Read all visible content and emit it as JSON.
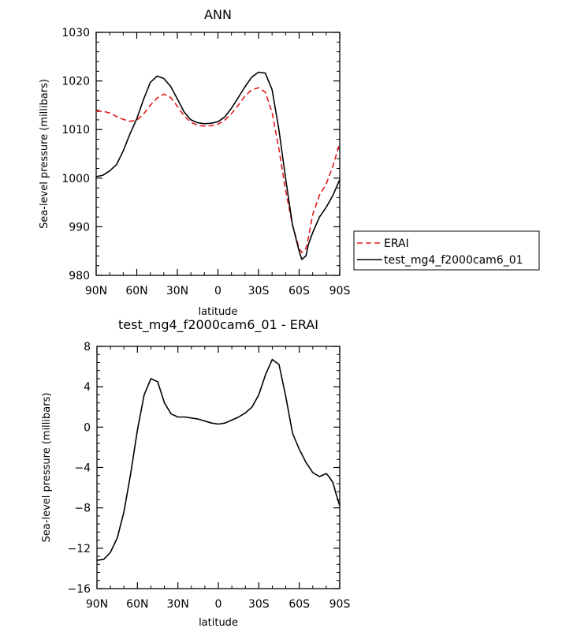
{
  "chart_data": [
    {
      "type": "line",
      "title": "ANN",
      "xlabel": "latitude",
      "ylabel": "Sea-level pressure (millibars)",
      "xlim": [
        90,
        -90
      ],
      "ylim": [
        980,
        1030
      ],
      "x_tick_values": [
        90,
        60,
        30,
        0,
        -30,
        -60,
        -90
      ],
      "x_tick_labels": [
        "90N",
        "60N",
        "30N",
        "0",
        "30S",
        "60S",
        "90S"
      ],
      "y_tick_values": [
        980,
        990,
        1000,
        1010,
        1020,
        1030
      ],
      "y_tick_labels": [
        "980",
        "990",
        "1000",
        "1010",
        "1020",
        "1030"
      ],
      "grid": false,
      "legend_position": "right",
      "x": [
        90,
        85,
        80,
        75,
        70,
        65,
        60,
        55,
        50,
        45,
        40,
        35,
        30,
        25,
        20,
        15,
        10,
        5,
        0,
        -5,
        -10,
        -15,
        -20,
        -25,
        -30,
        -35,
        -40,
        -45,
        -50,
        -55,
        -60,
        -62,
        -65,
        -67,
        -70,
        -75,
        -80,
        -85,
        -90
      ],
      "series": [
        {
          "name": "ERAI",
          "color": "#e41a1c",
          "dash": "dashed",
          "values": [
            1013.7,
            1013.8,
            1013.4,
            1012.7,
            1012.1,
            1011.7,
            1011.9,
            1013.2,
            1015.0,
            1016.5,
            1017.3,
            1016.6,
            1014.8,
            1012.8,
            1011.5,
            1010.9,
            1010.7,
            1010.8,
            1011.1,
            1011.9,
            1013.3,
            1015.0,
            1016.9,
            1018.2,
            1018.6,
            1017.7,
            1013.5,
            1006.0,
            997.5,
            990.5,
            985.5,
            984.7,
            985.5,
            988.0,
            992.5,
            996.5,
            998.8,
            1002.5,
            1007.2
          ]
        },
        {
          "name": "test_mg4_f2000cam6_01",
          "color": "#000000",
          "dash": "solid",
          "values": [
            1000.3,
            1000.6,
            1001.5,
            1002.8,
            1005.6,
            1009.1,
            1012.2,
            1016.2,
            1019.7,
            1021.0,
            1020.5,
            1018.9,
            1016.3,
            1013.6,
            1012.0,
            1011.4,
            1011.2,
            1011.3,
            1011.6,
            1012.6,
            1014.4,
            1016.6,
            1018.8,
            1020.8,
            1021.8,
            1021.6,
            1018.2,
            1010.0,
            1000.0,
            990.5,
            985.0,
            983.3,
            984.0,
            986.5,
            988.8,
            992.0,
            994.0,
            996.5,
            999.7
          ]
        }
      ]
    },
    {
      "type": "line",
      "title": "test_mg4_f2000cam6_01 - ERAI",
      "xlabel": "latitude",
      "ylabel": "Sea-level pressure (millibars)",
      "xlim": [
        90,
        -90
      ],
      "ylim": [
        -16,
        8
      ],
      "x_tick_values": [
        90,
        60,
        30,
        0,
        -30,
        -60,
        -90
      ],
      "x_tick_labels": [
        "90N",
        "60N",
        "30N",
        "0",
        "30S",
        "60S",
        "90S"
      ],
      "y_tick_values": [
        -16,
        -12,
        -8,
        -4,
        0,
        4,
        8
      ],
      "y_tick_labels": [
        "-16",
        "-12",
        "-8",
        "-4",
        "0",
        "4",
        "8"
      ],
      "grid": false,
      "x": [
        90,
        85,
        80,
        75,
        70,
        65,
        60,
        55,
        50,
        45,
        40,
        35,
        30,
        25,
        20,
        15,
        10,
        5,
        0,
        -5,
        -10,
        -15,
        -20,
        -25,
        -30,
        -35,
        -40,
        -45,
        -50,
        -55,
        -60,
        -65,
        -70,
        -75,
        -80,
        -82,
        -85,
        -87,
        -90
      ],
      "series": [
        {
          "color": "#000000",
          "dash": "solid",
          "values": [
            -13.2,
            -13.1,
            -12.4,
            -11.0,
            -8.4,
            -4.6,
            -0.3,
            3.2,
            4.8,
            4.5,
            2.4,
            1.3,
            1.0,
            1.0,
            0.9,
            0.8,
            0.6,
            0.4,
            0.3,
            0.4,
            0.7,
            1.0,
            1.4,
            2.0,
            3.2,
            5.2,
            6.7,
            6.2,
            3.0,
            -0.6,
            -2.2,
            -3.5,
            -4.5,
            -4.9,
            -4.6,
            -4.9,
            -5.5,
            -6.5,
            -7.8
          ]
        }
      ]
    }
  ]
}
